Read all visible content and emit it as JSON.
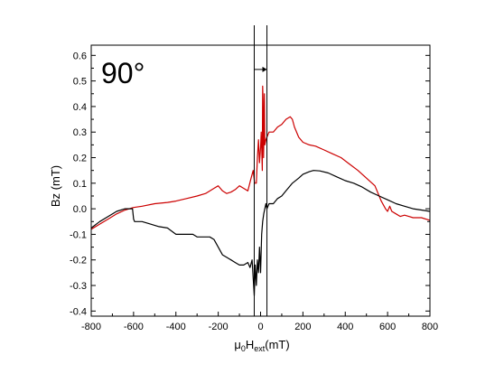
{
  "chart_data": {
    "type": "line",
    "title": "",
    "annotation": "90°",
    "ylabel": "Bz (mT)",
    "xlabel_parts": {
      "mu": "μ",
      "sub0": "0",
      "H": "H",
      "subext": "ext",
      "unit": "(mT)"
    },
    "xlim": [
      -800,
      800
    ],
    "ylim": [
      -0.42,
      0.64
    ],
    "xticks": [
      -800,
      -600,
      -400,
      -200,
      0,
      200,
      400,
      600,
      800
    ],
    "yticks": [
      -0.4,
      -0.3,
      -0.2,
      -0.1,
      0.0,
      0.1,
      0.2,
      0.3,
      0.4,
      0.5,
      0.6
    ],
    "ytick_labels": [
      "-0.4",
      "-0.3",
      "-0.2",
      "-0.1",
      "0.0",
      "0.1",
      "0.2",
      "0.3",
      "0.4",
      "0.5",
      "0.6"
    ],
    "grid": false,
    "legend": "none",
    "vertical_lines": [
      -30,
      30
    ],
    "arrow": {
      "from": -30,
      "to": 30,
      "y": 0.545
    },
    "series": [
      {
        "color": "#cc0000",
        "x": [
          -800,
          -760,
          -720,
          -680,
          -640,
          -600,
          -560,
          -500,
          -440,
          -400,
          -350,
          -300,
          -260,
          -220,
          -200,
          -180,
          -160,
          -140,
          -120,
          -100,
          -80,
          -60,
          -45,
          -35,
          -28,
          -20,
          -15,
          -10,
          -5,
          0,
          3,
          6,
          8,
          10,
          12,
          14,
          16,
          18,
          20,
          25,
          30,
          40,
          60,
          80,
          100,
          120,
          140,
          150,
          160,
          180,
          200,
          230,
          260,
          300,
          340,
          380,
          420,
          460,
          500,
          540,
          570,
          590,
          600,
          610,
          620,
          640,
          660,
          680,
          700,
          720,
          760,
          800
        ],
        "y": [
          -0.08,
          -0.06,
          -0.04,
          -0.02,
          -0.005,
          0.005,
          0.01,
          0.02,
          0.025,
          0.03,
          0.04,
          0.05,
          0.06,
          0.08,
          0.09,
          0.07,
          0.06,
          0.065,
          0.075,
          0.09,
          0.08,
          0.07,
          0.12,
          0.15,
          0.1,
          0.1,
          0.2,
          0.27,
          0.18,
          0.24,
          0.3,
          0.22,
          0.15,
          0.48,
          0.42,
          0.2,
          0.3,
          0.45,
          0.25,
          0.27,
          0.28,
          0.3,
          0.3,
          0.32,
          0.33,
          0.35,
          0.36,
          0.35,
          0.32,
          0.28,
          0.26,
          0.25,
          0.245,
          0.23,
          0.215,
          0.2,
          0.175,
          0.15,
          0.12,
          0.09,
          0.03,
          0.0,
          -0.01,
          0.01,
          -0.01,
          -0.02,
          -0.03,
          -0.025,
          -0.03,
          -0.035,
          -0.035,
          -0.045
        ]
      },
      {
        "color": "#000000",
        "x": [
          -800,
          -760,
          -720,
          -680,
          -640,
          -605,
          -600,
          -595,
          -560,
          -520,
          -480,
          -440,
          -400,
          -360,
          -320,
          -300,
          -280,
          -240,
          -220,
          -200,
          -180,
          -160,
          -140,
          -120,
          -100,
          -80,
          -60,
          -50,
          -40,
          -30,
          -25,
          -20,
          -15,
          -10,
          -5,
          0,
          5,
          10,
          15,
          20,
          25,
          30,
          40,
          60,
          80,
          100,
          120,
          150,
          180,
          200,
          230,
          250,
          280,
          320,
          360,
          400,
          440,
          480,
          520,
          560,
          600,
          640,
          680,
          720,
          760,
          800
        ],
        "y": [
          -0.075,
          -0.05,
          -0.03,
          -0.01,
          0.0,
          0.0,
          -0.04,
          -0.05,
          -0.05,
          -0.06,
          -0.07,
          -0.075,
          -0.1,
          -0.1,
          -0.1,
          -0.11,
          -0.11,
          -0.11,
          -0.12,
          -0.15,
          -0.18,
          -0.19,
          -0.2,
          -0.21,
          -0.22,
          -0.22,
          -0.21,
          -0.23,
          -0.2,
          -0.34,
          -0.22,
          -0.3,
          -0.2,
          -0.25,
          -0.15,
          -0.25,
          -0.1,
          -0.05,
          -0.02,
          0.0,
          0.02,
          0.0,
          0.02,
          0.02,
          0.04,
          0.05,
          0.07,
          0.1,
          0.12,
          0.135,
          0.145,
          0.15,
          0.148,
          0.14,
          0.125,
          0.11,
          0.1,
          0.085,
          0.065,
          0.05,
          0.035,
          0.02,
          0.01,
          0.0,
          -0.005,
          -0.01
        ]
      }
    ]
  }
}
